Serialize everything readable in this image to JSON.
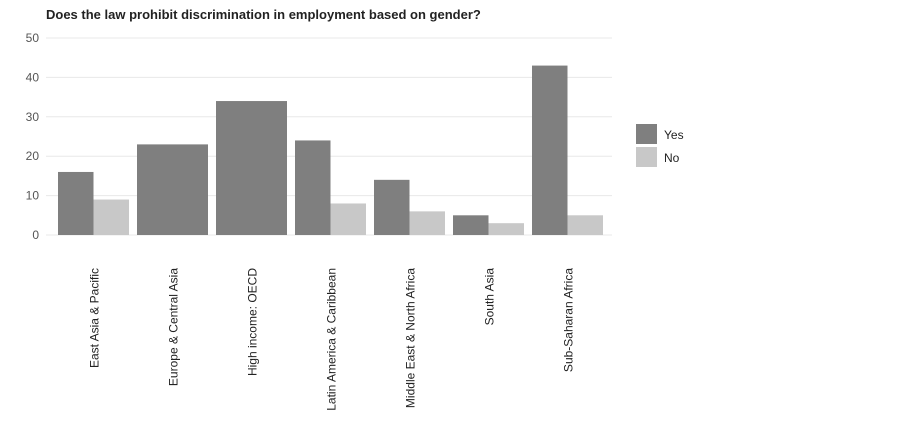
{
  "chart_data": {
    "type": "bar",
    "title": "Does the law prohibit discrimination in employment based on gender?",
    "xlabel": "",
    "ylabel": "",
    "ylim": [
      0,
      50
    ],
    "yticks": [
      0,
      10,
      20,
      30,
      40,
      50
    ],
    "grid": true,
    "legend_position": "right",
    "categories": [
      "East Asia & Pacific",
      "Europe & Central Asia",
      "High income: OECD",
      "Latin America & Caribbean",
      "Middle East & North Africa",
      "South Asia",
      "Sub-Saharan Africa"
    ],
    "series": [
      {
        "name": "Yes",
        "color": "#7f7f7f",
        "values": [
          16,
          23,
          34,
          24,
          14,
          5,
          43
        ]
      },
      {
        "name": "No",
        "color": "#c8c8c8",
        "values": [
          9,
          null,
          null,
          8,
          6,
          3,
          5
        ]
      }
    ]
  }
}
